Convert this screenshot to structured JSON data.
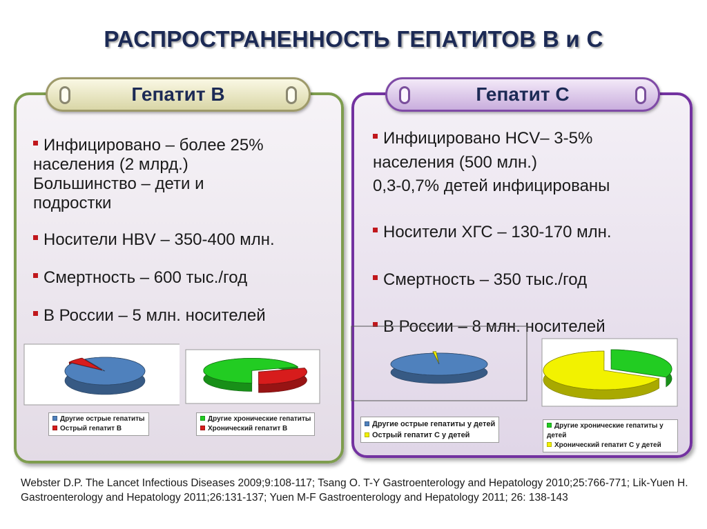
{
  "title": "РАСПРОСТРАНЕННОСТЬ ГЕПАТИТОВ В и С",
  "panel_b": {
    "header": "Гепатит В",
    "bullets": [
      [
        "Инфицировано – более 25%",
        "населения  (2 млрд.)",
        "Большинство – дети и",
        "подростки"
      ],
      [
        "Носители HBV – 350-400 млн."
      ],
      [
        "Смертность –  600 тыс./год"
      ],
      [
        "В России – 5 млн. носителей"
      ]
    ]
  },
  "panel_c": {
    "header": "Гепатит С",
    "bullets": [
      [
        "Инфицировано HCV– 3-5%",
        "населения (500 млн.)",
        "0,3-0,7% детей инфицированы"
      ],
      [
        "Носители ХГС – 130-170 млн."
      ],
      [
        "Смертность –  350 тыс./год"
      ],
      [
        "В России – 8 млн. носителей"
      ]
    ]
  },
  "colors": {
    "blue": "#4f81bd",
    "red": "#d71c1c",
    "green": "#22cc22",
    "yellow": "#f2f200",
    "title": "#1c2a55"
  },
  "chart_data": [
    {
      "type": "pie",
      "series": [
        {
          "name": "Другие острые гепатиты",
          "values": [
            93
          ]
        },
        {
          "name": "Острый гепатит В",
          "values": [
            7
          ]
        }
      ]
    },
    {
      "type": "pie",
      "series": [
        {
          "name": "Другие хронические гепатиты",
          "values": [
            70
          ]
        },
        {
          "name": "Хронический гепатит В",
          "values": [
            30
          ]
        }
      ]
    },
    {
      "type": "pie",
      "series": [
        {
          "name": "Другие острые гепатиты у детей",
          "values": [
            99
          ]
        },
        {
          "name": "Острый гепатит С у детей",
          "values": [
            1
          ]
        }
      ]
    },
    {
      "type": "pie",
      "series": [
        {
          "name": "Другие хронические гепатиты у детей",
          "values": [
            32
          ]
        },
        {
          "name": "Хронический гепатит С у детей",
          "values": [
            68
          ]
        }
      ]
    }
  ],
  "references": "Webster D.P. The Lancet Infectious Diseases 2009;9:108-117; Tsang O. T-Y  Gastroenterology and Hepatology 2010;25:766-771;  Lik-Yuen H. Gastroenterology and Hepatology 2011;26:131-137; Yuen M-F Gastroenterology and Hepatology 2011; 26: 138-143"
}
